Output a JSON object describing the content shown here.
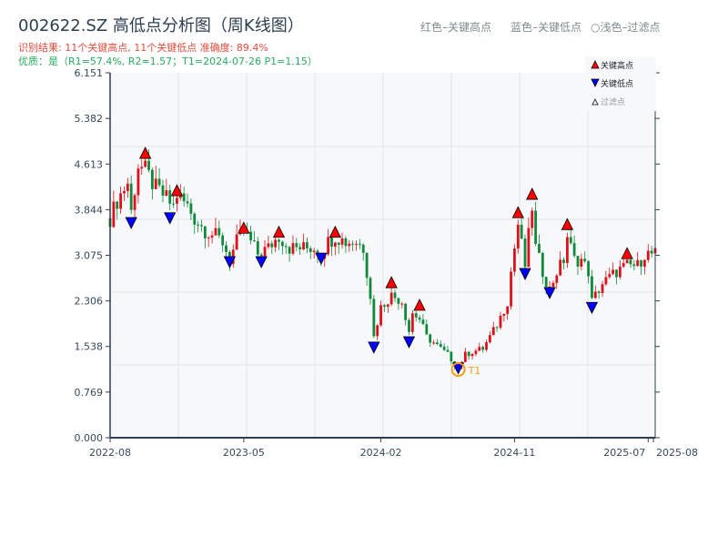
{
  "title": "002622.SZ 高低点分析图（周K线图）",
  "subtitle_result": "识别结果: 11个关键高点, 11个关键低点  准确度: 89.4%",
  "subtitle_quality": "优质：是（R1=57.4%, R2=1.57；T1=2024-07-26 P1=1.15）",
  "top_legend": {
    "red": "红色–关键高点",
    "blue": "蓝色–关键低点",
    "light": "○浅色–过滤点"
  },
  "colors": {
    "up": "#e0101a",
    "down": "#108a3a",
    "high_marker": "#ff0000",
    "low_marker": "#0000ff",
    "t1": "#f39c12",
    "axis": "#2c3e50",
    "plot_bg": "#f6f8fa"
  },
  "chart_data": {
    "type": "candlestick",
    "title": "002622.SZ 高低点分析图（周K线图）",
    "x_unit": "week index from 2022-08",
    "xlim": [
      0,
      155
    ],
    "ylim": [
      0,
      6.151
    ],
    "yticks": [
      "0.000",
      "0.769",
      "1.538",
      "2.306",
      "3.075",
      "3.844",
      "4.613",
      "5.382",
      "6.151"
    ],
    "xticks": [
      {
        "w": 0,
        "label": "2022-08"
      },
      {
        "w": 38,
        "label": "2023-05"
      },
      {
        "w": 77,
        "label": "2024-02"
      },
      {
        "w": 115,
        "label": "2024-11"
      },
      {
        "w": 153,
        "label": "2025-07"
      },
      {
        "w": 154.5,
        "label": "2025-08"
      }
    ],
    "close_path": [
      [
        0,
        3.7
      ],
      [
        2,
        4.0
      ],
      [
        5,
        4.3
      ],
      [
        6,
        3.8
      ],
      [
        8,
        4.6
      ],
      [
        10,
        4.5
      ],
      [
        13,
        4.2
      ],
      [
        15,
        4.1
      ],
      [
        18,
        3.9
      ],
      [
        19,
        4.1
      ],
      [
        22,
        3.9
      ],
      [
        24,
        3.7
      ],
      [
        27,
        3.5
      ],
      [
        30,
        3.4
      ],
      [
        32,
        3.3
      ],
      [
        34,
        3.0
      ],
      [
        36,
        3.3
      ],
      [
        38,
        3.5
      ],
      [
        40,
        3.3
      ],
      [
        42,
        3.1
      ],
      [
        45,
        3.2
      ],
      [
        48,
        3.4
      ],
      [
        51,
        3.2
      ],
      [
        54,
        3.2
      ],
      [
        58,
        3.2
      ],
      [
        60,
        3.1
      ],
      [
        62,
        3.3
      ],
      [
        64,
        3.4
      ],
      [
        67,
        3.3
      ],
      [
        70,
        3.3
      ],
      [
        72,
        3.2
      ],
      [
        74,
        2.4
      ],
      [
        75,
        1.7
      ],
      [
        77,
        2.2
      ],
      [
        80,
        2.4
      ],
      [
        83,
        2.3
      ],
      [
        85,
        1.8
      ],
      [
        86,
        2.1
      ],
      [
        88,
        2.0
      ],
      [
        90,
        1.7
      ],
      [
        93,
        1.55
      ],
      [
        96,
        1.4
      ],
      [
        98,
        1.25
      ],
      [
        99,
        1.2
      ],
      [
        101,
        1.4
      ],
      [
        103,
        1.45
      ],
      [
        106,
        1.5
      ],
      [
        108,
        1.7
      ],
      [
        110,
        1.9
      ],
      [
        113,
        2.3
      ],
      [
        114,
        2.8
      ],
      [
        116,
        3.6
      ],
      [
        118,
        2.9
      ],
      [
        120,
        3.9
      ],
      [
        121,
        3.2
      ],
      [
        123,
        2.8
      ],
      [
        125,
        2.5
      ],
      [
        127,
        2.8
      ],
      [
        129,
        3.0
      ],
      [
        130,
        3.4
      ],
      [
        132,
        3.0
      ],
      [
        134,
        3.0
      ],
      [
        136,
        2.8
      ],
      [
        137,
        2.3
      ],
      [
        140,
        2.6
      ],
      [
        142,
        2.7
      ],
      [
        144,
        2.8
      ],
      [
        147,
        2.9
      ],
      [
        150,
        2.9
      ],
      [
        152,
        3.1
      ],
      [
        155,
        3.1
      ]
    ],
    "key_highs": [
      [
        10,
        4.8
      ],
      [
        19,
        4.17
      ],
      [
        38,
        3.54
      ],
      [
        48,
        3.47
      ],
      [
        64,
        3.47
      ],
      [
        80,
        2.62
      ],
      [
        88,
        2.24
      ],
      [
        116,
        3.8
      ],
      [
        120,
        4.11
      ],
      [
        130,
        3.6
      ],
      [
        147,
        3.11
      ]
    ],
    "key_lows": [
      [
        6,
        3.62
      ],
      [
        17,
        3.7
      ],
      [
        34,
        2.96
      ],
      [
        43,
        2.96
      ],
      [
        60,
        3.02
      ],
      [
        75,
        1.52
      ],
      [
        85,
        1.61
      ],
      [
        99,
        1.17
      ],
      [
        118,
        2.76
      ],
      [
        125,
        2.44
      ],
      [
        137,
        2.19
      ]
    ],
    "t1": {
      "w": 99,
      "price": 1.15,
      "label": "T1"
    },
    "legend": {
      "position": "top-right",
      "items": [
        "关键高点",
        "关键低点",
        "过滤点"
      ]
    }
  }
}
